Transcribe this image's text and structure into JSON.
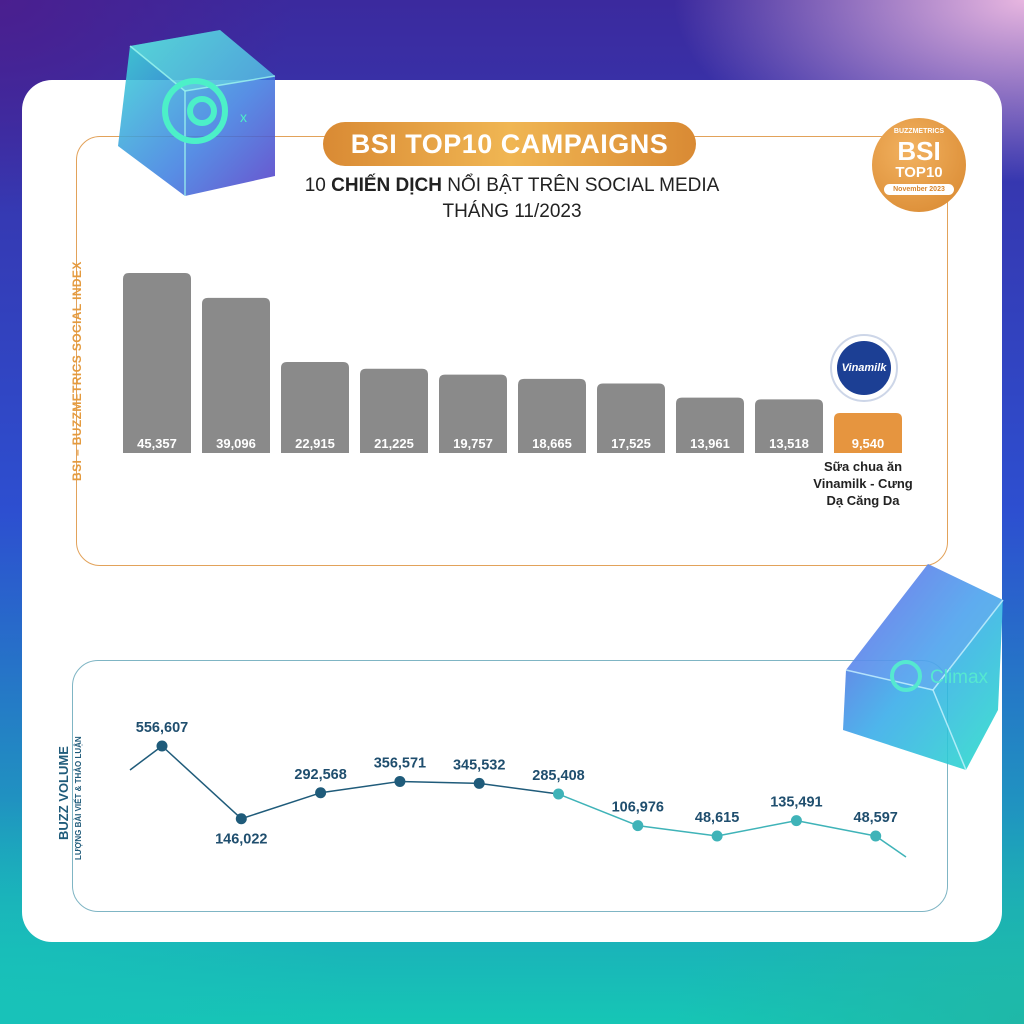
{
  "header": {
    "title": "BSI TOP10 CAMPAIGNS",
    "subtitle_pre": "10 ",
    "subtitle_bold": "CHIẾN DỊCH",
    "subtitle_post": " NỔI BẬT TRÊN SOCIAL MEDIA",
    "subtitle_line2": "THÁNG 11/2023"
  },
  "badge": {
    "brand": "BUZZMETRICS",
    "main": "BSI",
    "sub": "TOP10",
    "date": "November 2023"
  },
  "axis_labels": {
    "bsi": "BSI – BUZZMETRICS SOCIAL INDEX",
    "buzz_title": "BUZZ VOLUME",
    "buzz_sub": "LƯỢNG BÀI VIẾT & THẢO LUẬN"
  },
  "highlight": {
    "brand_logo": "Vinamilk",
    "name": "Sữa chua ăn Vinamilk - Cưng Dạ Căng Da"
  },
  "decor": {
    "cube_text": "Climax"
  },
  "colors": {
    "bar_gray": "#8a8a8a",
    "bar_highlight": "#e6953f",
    "line_dark": "#1f5b7a",
    "line_light": "#3fb3b8"
  },
  "chart_data": [
    {
      "type": "bar",
      "ylabel": "BSI – BUZZMETRICS SOCIAL INDEX",
      "values": [
        45357,
        39096,
        22915,
        21225,
        19757,
        18665,
        17525,
        13961,
        13518,
        9540
      ],
      "labels": [
        "45,357",
        "39,096",
        "22,915",
        "21,225",
        "19,757",
        "18,665",
        "17,525",
        "13,961",
        "13,518",
        "9,540"
      ],
      "highlight_index": 9
    },
    {
      "type": "line",
      "ylabel": "BUZZ VOLUME",
      "values": [
        556607,
        146022,
        292568,
        356571,
        345532,
        285408,
        106976,
        48615,
        135491,
        48597
      ],
      "labels": [
        "556,607",
        "146,022",
        "292,568",
        "356,571",
        "345,532",
        "285,408",
        "106,976",
        "48,615",
        "135,491",
        "48,597"
      ]
    }
  ]
}
